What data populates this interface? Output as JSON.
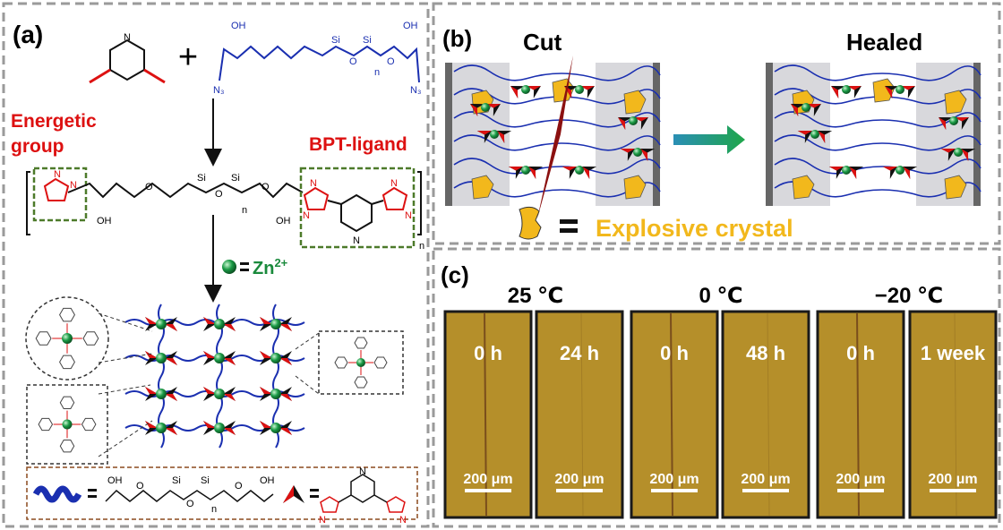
{
  "panel_a": {
    "label": "(a)",
    "plus": "+",
    "reactant_labels": [
      "N",
      "OH",
      "N₃",
      "Si",
      "O",
      "Si",
      "n",
      "O",
      "OH",
      "N₃"
    ],
    "energetic_group": [
      "Energetic",
      "group"
    ],
    "bpt_ligand": "BPT-ligand",
    "polymer_labels": [
      "N",
      "N",
      "OH",
      "O",
      "Si",
      "O",
      "Si",
      "n",
      "O",
      "OH",
      "N",
      "N",
      "N",
      "N",
      "N",
      "n"
    ],
    "zinc": {
      "symbol": "Zn",
      "charge": "2+"
    },
    "legend_labels": [
      "OH",
      "O",
      "Si",
      "O",
      "Si",
      "n",
      "O",
      "OH",
      "N",
      "N",
      "N"
    ]
  },
  "panel_b": {
    "label": "(b)",
    "cut": "Cut",
    "healed": "Healed",
    "legend": "Explosive crystal"
  },
  "panel_c": {
    "label": "(c)",
    "temperatures": [
      "25 ℃",
      "0 ℃",
      "−20 ℃"
    ],
    "times": [
      "0 h",
      "24 h",
      "0 h",
      "48 h",
      "0 h",
      "1 week"
    ],
    "scale_bar": "200 μm"
  }
}
